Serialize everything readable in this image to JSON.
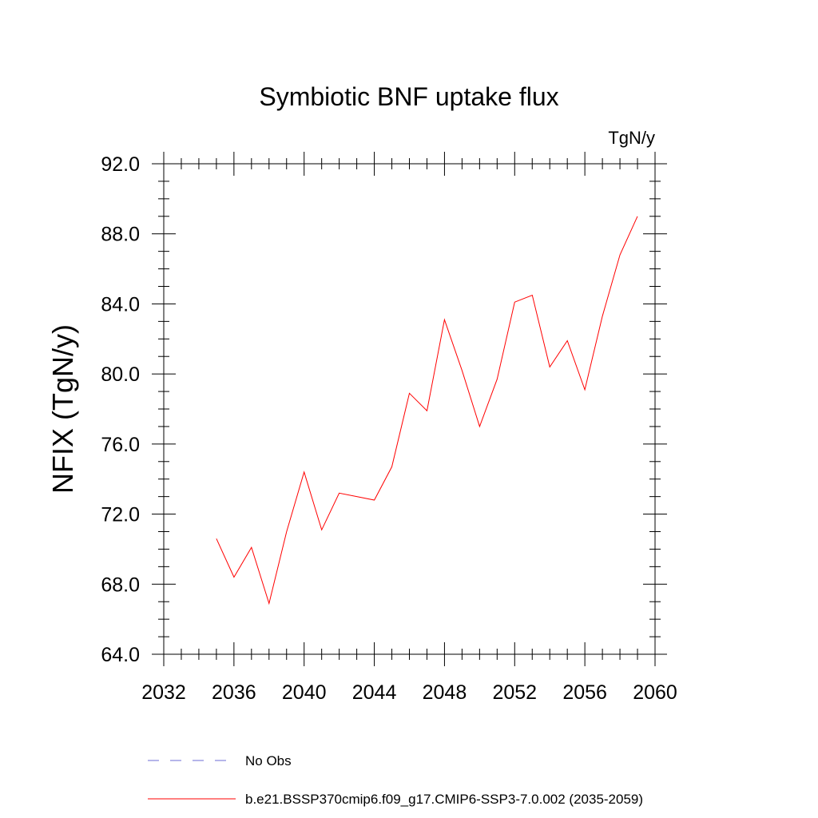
{
  "chart_data": {
    "type": "line",
    "title": "Symbiotic BNF uptake flux",
    "units": "TgN/y",
    "ylabel": "NFIX  (TgN/y)",
    "xlabel": "",
    "xlim": [
      2032,
      2060
    ],
    "ylim": [
      64,
      92
    ],
    "x_ticks": [
      2032,
      2036,
      2040,
      2044,
      2048,
      2052,
      2056,
      2060
    ],
    "x_tick_labels": [
      "2032",
      "2036",
      "2040",
      "2044",
      "2048",
      "2052",
      "2056",
      "2060"
    ],
    "y_ticks": [
      64,
      68,
      72,
      76,
      80,
      84,
      88,
      92
    ],
    "y_tick_labels": [
      "64.0",
      "68.0",
      "72.0",
      "76.0",
      "80.0",
      "84.0",
      "88.0",
      "92.0"
    ],
    "grid": false,
    "legend_position": "bottom",
    "series": [
      {
        "name": "b.e21.BSSP370cmip6.f09_g17.CMIP6-SSP3-7.0.002 (2035-2059)",
        "color": "#ff0000",
        "style": "solid",
        "x": [
          2035,
          2036,
          2037,
          2038,
          2039,
          2040,
          2041,
          2042,
          2043,
          2044,
          2045,
          2046,
          2047,
          2048,
          2049,
          2050,
          2051,
          2052,
          2053,
          2054,
          2055,
          2056,
          2057,
          2058,
          2059
        ],
        "y": [
          70.6,
          68.4,
          70.1,
          66.9,
          71.0,
          74.4,
          71.1,
          73.2,
          73.0,
          72.8,
          74.7,
          78.9,
          77.9,
          83.1,
          80.2,
          77.0,
          79.7,
          84.1,
          84.5,
          80.4,
          81.9,
          79.1,
          83.3,
          86.8,
          89.0
        ]
      }
    ],
    "legend": [
      {
        "label": "No Obs",
        "color": "#6b6bd6",
        "style": "dashed"
      },
      {
        "label": "b.e21.BSSP370cmip6.f09_g17.CMIP6-SSP3-7.0.002 (2035-2059)",
        "color": "#ff0000",
        "style": "solid"
      }
    ]
  }
}
